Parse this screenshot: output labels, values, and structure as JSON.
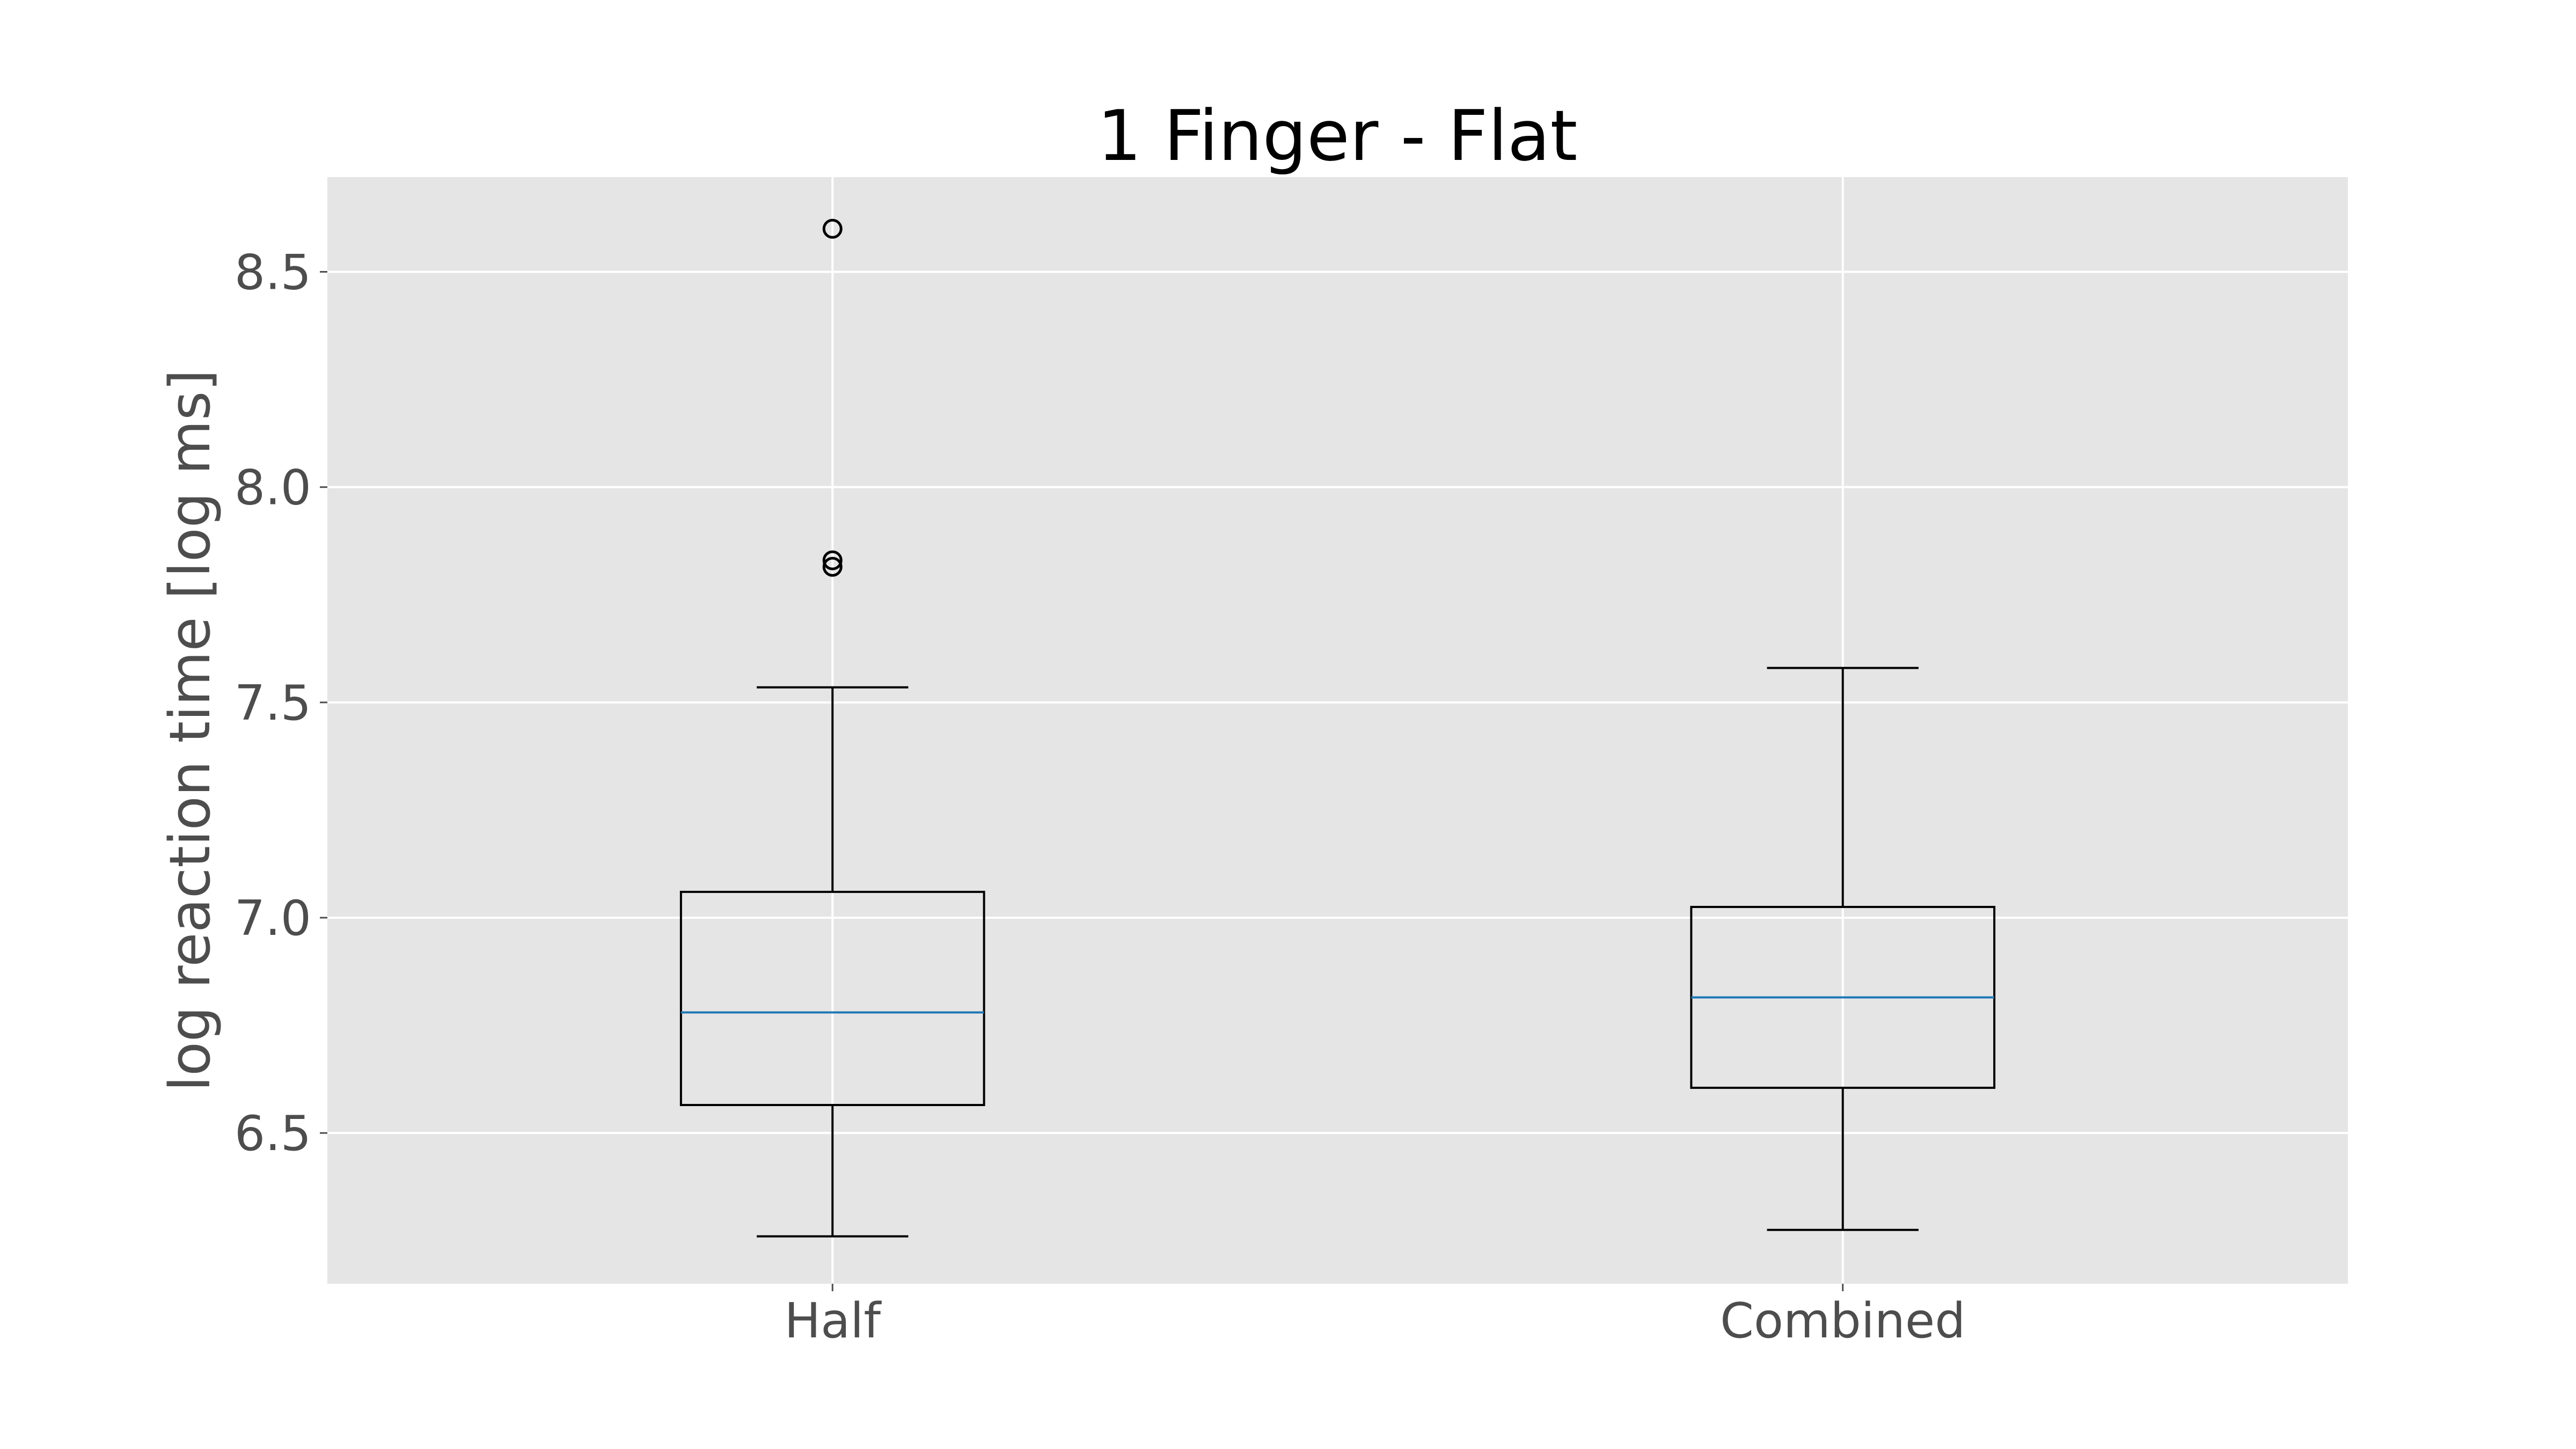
{
  "chart_data": {
    "type": "box",
    "title": "1 Finger - Flat",
    "xlabel": "",
    "ylabel": "log reaction time [log ms]",
    "ylim": [
      6.15,
      8.72
    ],
    "yticks": [
      6.5,
      7.0,
      7.5,
      8.0,
      8.5
    ],
    "ytick_labels": [
      "6.5",
      "7.0",
      "7.5",
      "8.0",
      "8.5"
    ],
    "grid": true,
    "categories": [
      "Half",
      "Combined"
    ],
    "boxes": [
      {
        "name": "Half",
        "whisker_low": 6.26,
        "q1": 6.565,
        "median": 6.78,
        "q3": 7.06,
        "whisker_high": 7.535,
        "fliers": [
          7.815,
          7.83,
          8.6
        ]
      },
      {
        "name": "Combined",
        "whisker_low": 6.275,
        "q1": 6.605,
        "median": 6.815,
        "q3": 7.025,
        "whisker_high": 7.58,
        "fliers": []
      }
    ],
    "colors": {
      "background": "#e5e5e5",
      "median": "#1f77b4",
      "box": "#000000",
      "grid": "#ffffff"
    }
  }
}
